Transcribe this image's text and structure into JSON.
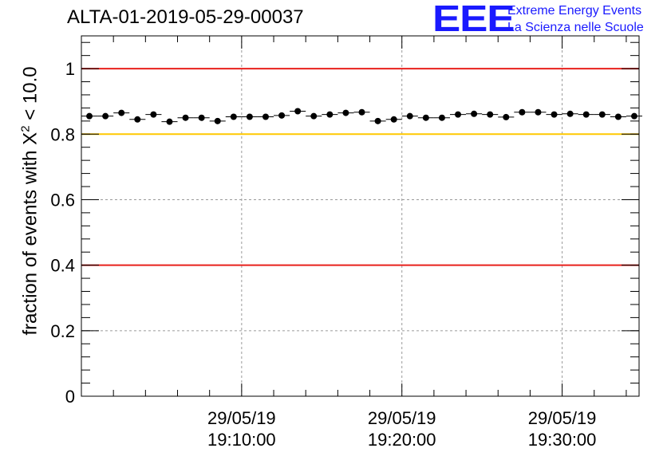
{
  "header": {
    "run_title": "ALTA-01-2019-05-29-00037",
    "logo_letters": "EEE",
    "logo_line1": "Extreme Energy Events",
    "logo_line2": "La Scienza nelle Scuole"
  },
  "chart_data": {
    "type": "scatter",
    "title": "ALTA-01-2019-05-29-00037",
    "ylabel_main": "fraction of events with X",
    "ylabel_sup": "2",
    "ylabel_tail": " < 10.0",
    "ylim": [
      0,
      1.1
    ],
    "xlim_minutes": [
      0,
      34.8
    ],
    "y_ticks": [
      "0",
      "0.2",
      "0.4",
      "0.6",
      "0.8",
      "1"
    ],
    "y_tick_values": [
      0,
      0.2,
      0.4,
      0.6,
      0.8,
      1.0
    ],
    "x_ticks": [
      {
        "date": "29/05/19",
        "time": "19:10:00",
        "minutes": 10
      },
      {
        "date": "29/05/19",
        "time": "19:20:00",
        "minutes": 20
      },
      {
        "date": "29/05/19",
        "time": "19:30:00",
        "minutes": 30
      }
    ],
    "grid": true,
    "reference_lines": [
      {
        "y": 1.0,
        "color": "#e8201c"
      },
      {
        "y": 0.8,
        "color": "#ffc800"
      },
      {
        "y": 0.4,
        "color": "#e8201c"
      }
    ],
    "series": [
      {
        "x": [
          0.5,
          1.5,
          2.5,
          3.5,
          4.5,
          5.5,
          6.5,
          7.5,
          8.5,
          9.5,
          10.5,
          11.5,
          12.5,
          13.5,
          14.5,
          15.5,
          16.5,
          17.5,
          18.5,
          19.5,
          20.5,
          21.5,
          22.5,
          23.5,
          24.5,
          25.5,
          26.5,
          27.5,
          28.5,
          29.5,
          30.5,
          31.5,
          32.5,
          33.5,
          34.5
        ],
        "y": [
          0.855,
          0.855,
          0.865,
          0.845,
          0.86,
          0.838,
          0.85,
          0.85,
          0.84,
          0.853,
          0.853,
          0.853,
          0.857,
          0.87,
          0.855,
          0.86,
          0.865,
          0.867,
          0.84,
          0.845,
          0.855,
          0.85,
          0.85,
          0.86,
          0.862,
          0.86,
          0.852,
          0.867,
          0.867,
          0.86,
          0.862,
          0.86,
          0.86,
          0.853,
          0.855
        ]
      }
    ]
  }
}
